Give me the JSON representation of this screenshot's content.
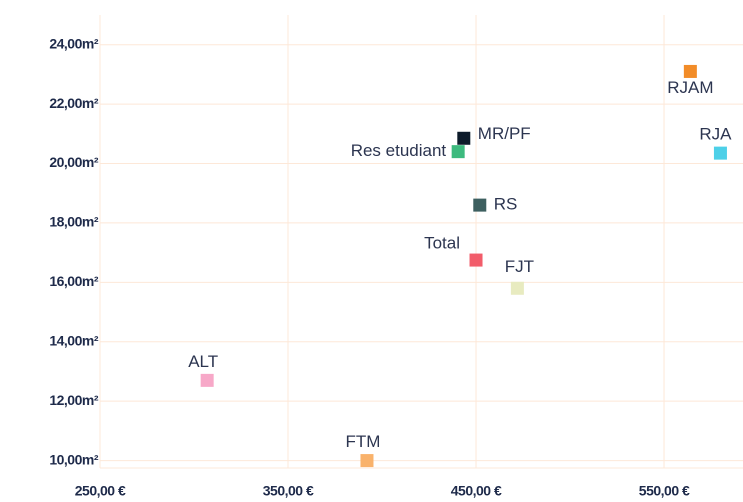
{
  "chart_data": {
    "type": "scatter",
    "points": [
      {
        "label": "RJAM",
        "x": 564,
        "y": 23.1,
        "color": "#f28c28"
      },
      {
        "label": "RJA",
        "x": 580,
        "y": 20.35,
        "color": "#4dd0e8"
      },
      {
        "label": "MR/PF",
        "x": 443.5,
        "y": 20.85,
        "color": "#0d1b2a"
      },
      {
        "label": "Res etudiant",
        "x": 440.5,
        "y": 20.4,
        "color": "#3dba7e"
      },
      {
        "label": "RS",
        "x": 452,
        "y": 18.6,
        "color": "#3d5f5f"
      },
      {
        "label": "Total",
        "x": 450,
        "y": 16.75,
        "color": "#f25c6a"
      },
      {
        "label": "FJT",
        "x": 472,
        "y": 15.8,
        "color": "#e8ebc0"
      },
      {
        "label": "ALT",
        "x": 307,
        "y": 12.7,
        "color": "#f7a8c8"
      },
      {
        "label": "FTM",
        "x": 392,
        "y": 10.0,
        "color": "#f9b26b"
      }
    ],
    "xlim": [
      250,
      592
    ],
    "ylim": [
      9.75,
      25
    ],
    "xticks": [
      {
        "value": 250,
        "label": "250,00 €"
      },
      {
        "value": 350,
        "label": "350,00 €"
      },
      {
        "value": 450,
        "label": "450,00 €"
      },
      {
        "value": 550,
        "label": "550,00 €"
      }
    ],
    "yticks": [
      {
        "value": 10,
        "label": "10,00m²"
      },
      {
        "value": 12,
        "label": "12,00m²"
      },
      {
        "value": 14,
        "label": "14,00m²"
      },
      {
        "value": 16,
        "label": "16,00m²"
      },
      {
        "value": 18,
        "label": "18,00m²"
      },
      {
        "value": 20,
        "label": "20,00m²"
      },
      {
        "value": 22,
        "label": "22,00m²"
      },
      {
        "value": 24,
        "label": "24,00m²"
      }
    ],
    "grid": true
  }
}
